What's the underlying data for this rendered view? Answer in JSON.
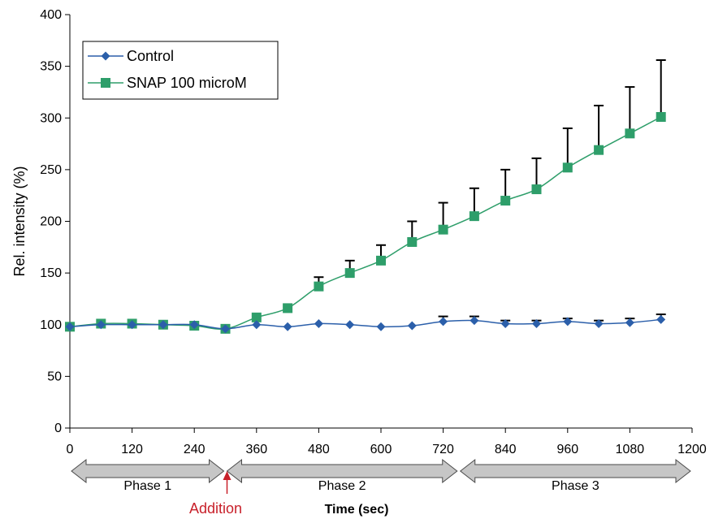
{
  "chart_data": {
    "type": "line",
    "xlabel": "Time (sec)",
    "ylabel": "Rel. intensity (%)",
    "xlim": [
      0,
      1200
    ],
    "ylim": [
      0,
      400
    ],
    "x_ticks": [
      0,
      120,
      240,
      360,
      480,
      600,
      720,
      840,
      960,
      1080,
      1200
    ],
    "y_ticks": [
      0,
      50,
      100,
      150,
      200,
      250,
      300,
      350,
      400
    ],
    "grid": false,
    "legend_position": "top-left",
    "series": [
      {
        "name": "Control",
        "marker": "diamond",
        "color": "#2b5faa",
        "x": [
          0,
          60,
          120,
          180,
          240,
          300,
          360,
          420,
          480,
          540,
          600,
          660,
          720,
          780,
          840,
          900,
          960,
          1020,
          1080,
          1140
        ],
        "values": [
          98,
          100,
          100,
          100,
          100,
          96,
          100,
          98,
          101,
          100,
          98,
          99,
          103,
          104,
          101,
          101,
          103,
          101,
          102,
          105
        ],
        "error_plus": [
          0,
          0,
          0,
          0,
          0,
          0,
          0,
          0,
          0,
          0,
          0,
          0,
          5,
          4,
          3,
          3,
          3,
          3,
          4,
          5
        ]
      },
      {
        "name": "SNAP 100 microM",
        "marker": "square",
        "color": "#2e9e6a",
        "x": [
          0,
          60,
          120,
          180,
          240,
          300,
          360,
          420,
          480,
          540,
          600,
          660,
          720,
          780,
          840,
          900,
          960,
          1020,
          1080,
          1140
        ],
        "values": [
          98,
          101,
          101,
          100,
          99,
          96,
          107,
          116,
          137,
          150,
          162,
          180,
          192,
          205,
          220,
          231,
          252,
          269,
          285,
          301
        ],
        "error_plus": [
          0,
          0,
          0,
          0,
          0,
          0,
          0,
          0,
          9,
          12,
          15,
          20,
          26,
          27,
          30,
          30,
          38,
          43,
          45,
          55
        ]
      }
    ],
    "annotations": {
      "phases": [
        {
          "label": "Phase 1",
          "start": 0,
          "end": 300
        },
        {
          "label": "Phase 2",
          "start": 300,
          "end": 750
        },
        {
          "label": "Phase 3",
          "start": 750,
          "end": 1200
        }
      ],
      "addition": {
        "label": "Addition",
        "x": 300,
        "color": "#c8202a"
      }
    }
  }
}
